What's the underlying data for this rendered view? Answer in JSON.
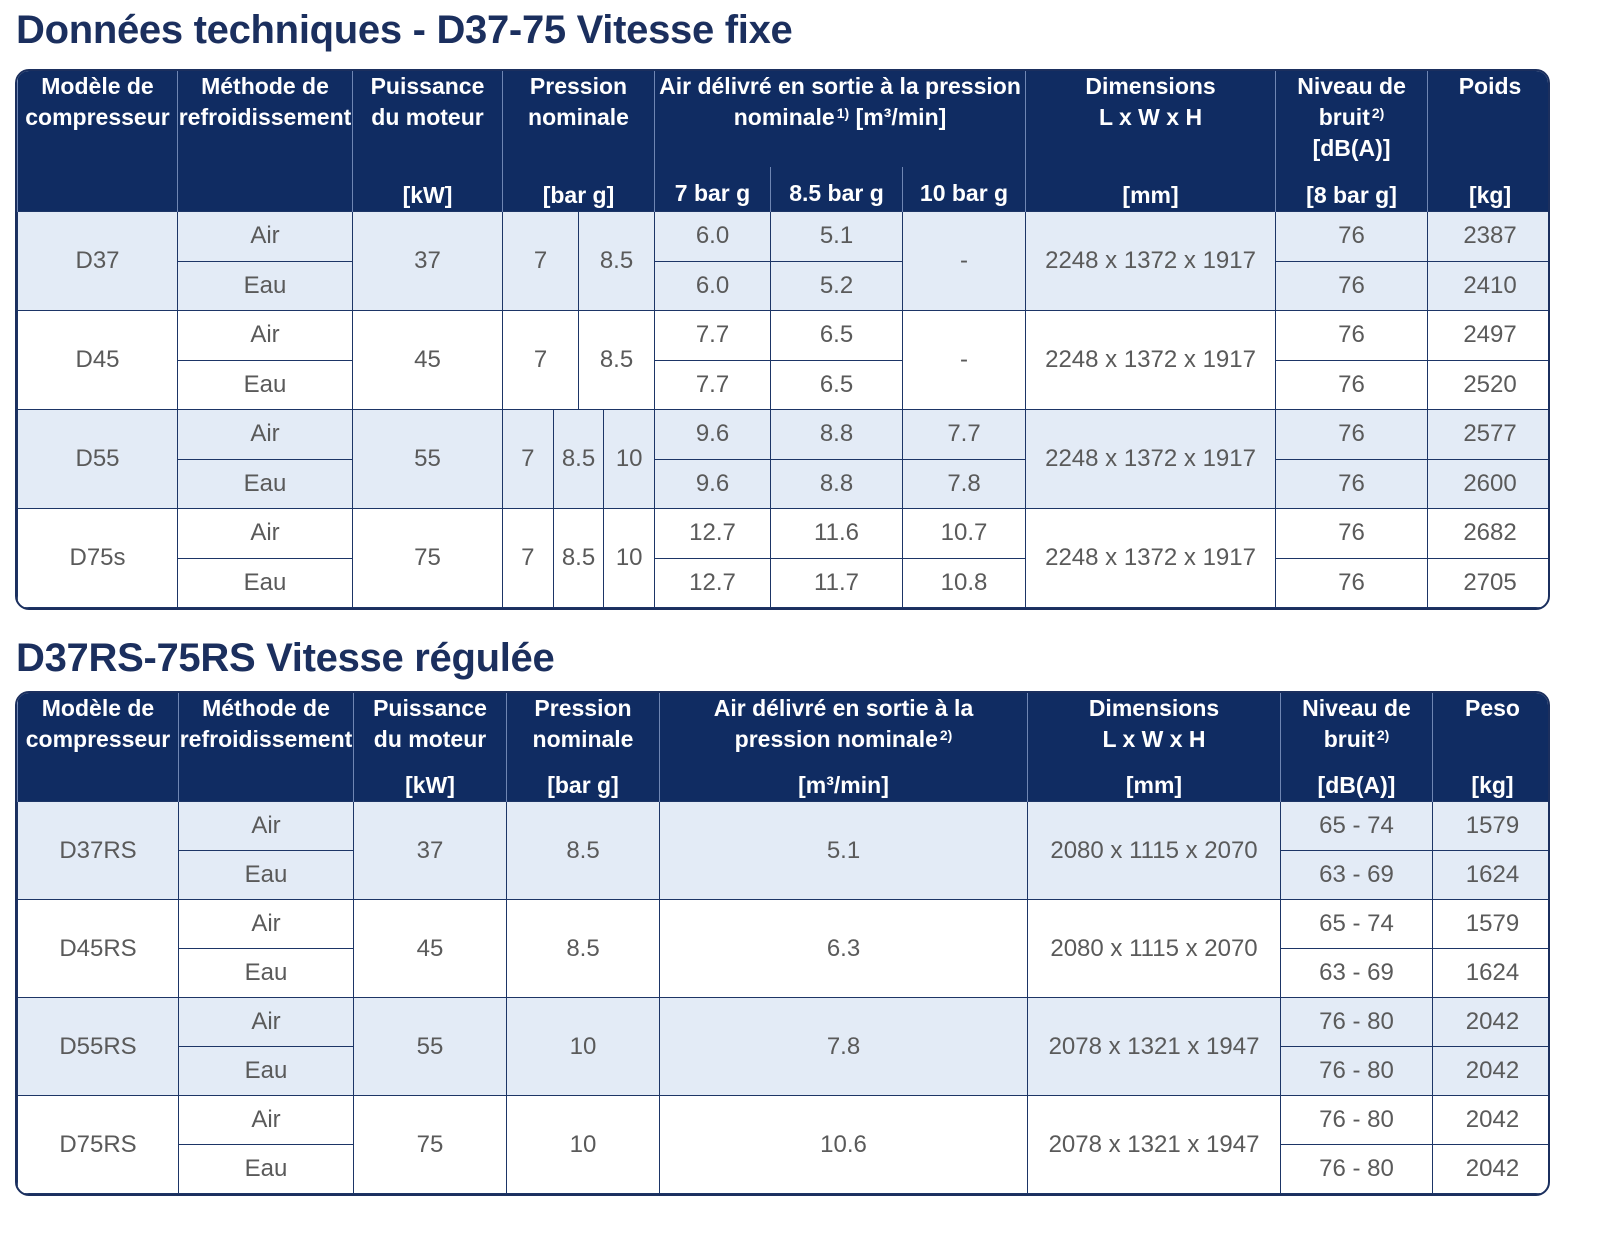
{
  "table1": {
    "title": "Données techniques - D37-75 Vitesse fixe",
    "header": [
      {
        "text": "Modèle de compresseur"
      },
      {
        "text": "Méthode de refroidissement"
      },
      {
        "text": "Puissance du moteur",
        "unit": "[kW]"
      },
      {
        "text": "Pression nominale",
        "unit": "[bar g]"
      },
      {
        "text": "Air délivré en sortie à la pression nominale",
        "note": "1)",
        "unit": "[m³/min]",
        "columns": [
          "7 bar g",
          "8.5 bar g",
          "10 bar g"
        ]
      },
      {
        "text": "Dimensions",
        "sub": "L x W x H",
        "unit": "[mm]"
      },
      {
        "text": "Niveau de bruit",
        "note": "2)",
        "sub": "[dB(A)]",
        "unit": "[8 bar g]"
      },
      {
        "text": "Poids",
        "unit": "[kg]"
      }
    ],
    "rows": [
      {
        "model": "D37",
        "power": "37",
        "pressures": [
          "7",
          "8.5"
        ],
        "air_10": "-",
        "dimensions": "2248 x 1372 x 1917",
        "variants": [
          {
            "cooling": "Air",
            "air": [
              "6.0",
              "5.1"
            ],
            "noise": "76",
            "weight": "2387"
          },
          {
            "cooling": "Eau",
            "air": [
              "6.0",
              "5.2"
            ],
            "noise": "76",
            "weight": "2410"
          }
        ]
      },
      {
        "model": "D45",
        "power": "45",
        "pressures": [
          "7",
          "8.5"
        ],
        "air_10": "-",
        "dimensions": "2248 x 1372 x 1917",
        "variants": [
          {
            "cooling": "Air",
            "air": [
              "7.7",
              "6.5"
            ],
            "noise": "76",
            "weight": "2497"
          },
          {
            "cooling": "Eau",
            "air": [
              "7.7",
              "6.5"
            ],
            "noise": "76",
            "weight": "2520"
          }
        ]
      },
      {
        "model": "D55",
        "power": "55",
        "pressures": [
          "7",
          "8.5",
          "10"
        ],
        "dimensions": "2248 x 1372 x 1917",
        "variants": [
          {
            "cooling": "Air",
            "air": [
              "9.6",
              "8.8",
              "7.7"
            ],
            "noise": "76",
            "weight": "2577"
          },
          {
            "cooling": "Eau",
            "air": [
              "9.6",
              "8.8",
              "7.8"
            ],
            "noise": "76",
            "weight": "2600"
          }
        ]
      },
      {
        "model": "D75s",
        "power": "75",
        "pressures": [
          "7",
          "8.5",
          "10"
        ],
        "dimensions": "2248 x 1372 x 1917",
        "variants": [
          {
            "cooling": "Air",
            "air": [
              "12.7",
              "11.6",
              "10.7"
            ],
            "noise": "76",
            "weight": "2682"
          },
          {
            "cooling": "Eau",
            "air": [
              "12.7",
              "11.7",
              "10.8"
            ],
            "noise": "76",
            "weight": "2705"
          }
        ]
      }
    ]
  },
  "table2": {
    "title": "D37RS-75RS Vitesse régulée",
    "header": [
      {
        "text": "Modèle de compresseur"
      },
      {
        "text": "Méthode de refroidissement"
      },
      {
        "text": "Puissance du moteur",
        "unit": "[kW]"
      },
      {
        "text": "Pression nominale",
        "unit": "[bar g]"
      },
      {
        "text": "Air délivré en sortie à la pression nominale",
        "note": "2)",
        "unit": "[m³/min]"
      },
      {
        "text": "Dimensions",
        "sub": "L x W x H",
        "unit": "[mm]"
      },
      {
        "text": "Niveau de bruit",
        "note": "2)",
        "unit": "[dB(A)]"
      },
      {
        "text": "Peso",
        "unit": "[kg]"
      }
    ],
    "rows": [
      {
        "model": "D37RS",
        "power": "37",
        "pressure": "8.5",
        "air": "5.1",
        "dimensions": "2080 x 1115 x 2070",
        "variants": [
          {
            "cooling": "Air",
            "noise": "65 - 74",
            "weight": "1579"
          },
          {
            "cooling": "Eau",
            "noise": "63 - 69",
            "weight": "1624"
          }
        ]
      },
      {
        "model": "D45RS",
        "power": "45",
        "pressure": "8.5",
        "air": "6.3",
        "dimensions": "2080 x 1115 x 2070",
        "variants": [
          {
            "cooling": "Air",
            "noise": "65 - 74",
            "weight": "1579"
          },
          {
            "cooling": "Eau",
            "noise": "63 - 69",
            "weight": "1624"
          }
        ]
      },
      {
        "model": "D55RS",
        "power": "55",
        "pressure": "10",
        "air": "7.8",
        "dimensions": "2078 x 1321 x 1947",
        "variants": [
          {
            "cooling": "Air",
            "noise": "76 - 80",
            "weight": "2042"
          },
          {
            "cooling": "Eau",
            "noise": "76 - 80",
            "weight": "2042"
          }
        ]
      },
      {
        "model": "D75RS",
        "power": "75",
        "pressure": "10",
        "air": "10.6",
        "dimensions": "2078 x 1321 x 1947",
        "variants": [
          {
            "cooling": "Air",
            "noise": "76 - 80",
            "weight": "2042"
          },
          {
            "cooling": "Eau",
            "noise": "76 - 80",
            "weight": "2042"
          }
        ]
      }
    ]
  }
}
